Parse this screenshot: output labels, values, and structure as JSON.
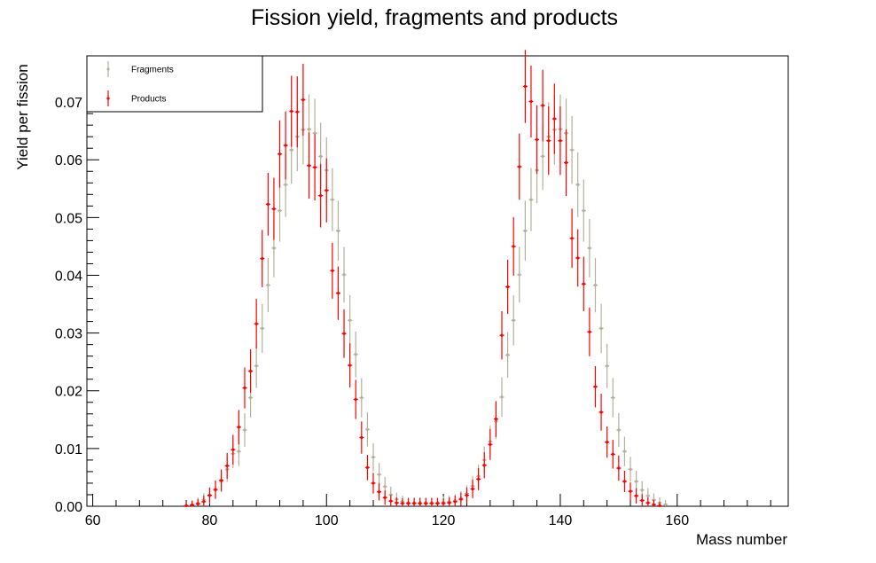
{
  "chart_data": {
    "type": "scatter",
    "title": "Fission yield, fragments and products",
    "xlabel": "Mass number",
    "ylabel": "Yield per fission",
    "xlim": [
      59,
      179
    ],
    "ylim": [
      0,
      0.078
    ],
    "x_ticks": [
      60,
      80,
      100,
      120,
      140,
      160
    ],
    "y_ticks": [
      0.0,
      0.01,
      0.02,
      0.03,
      0.04,
      0.05,
      0.06,
      0.07
    ],
    "x_tick_labels": [
      "60",
      "80",
      "100",
      "120",
      "140",
      "160"
    ],
    "y_tick_labels": [
      "0.00",
      "0.01",
      "0.02",
      "0.03",
      "0.04",
      "0.05",
      "0.06",
      "0.07"
    ],
    "grid": false,
    "legend_position": "top-left",
    "series": [
      {
        "name": "Fragments",
        "color": "#b5b09a",
        "points": [
          [
            76,
            0.0001
          ],
          [
            77,
            0.0003
          ],
          [
            78,
            0.0006
          ],
          [
            79,
            0.0011
          ],
          [
            80,
            0.0018
          ],
          [
            81,
            0.0028
          ],
          [
            82,
            0.0043
          ],
          [
            83,
            0.0064
          ],
          [
            84,
            0.0091
          ],
          [
            85,
            0.0095
          ],
          [
            86,
            0.0132
          ],
          [
            87,
            0.0188
          ],
          [
            88,
            0.0243
          ],
          [
            89,
            0.0308
          ],
          [
            90,
            0.0383
          ],
          [
            91,
            0.0447
          ],
          [
            92,
            0.0512
          ],
          [
            93,
            0.0557
          ],
          [
            94,
            0.0617
          ],
          [
            95,
            0.064
          ],
          [
            96,
            0.0652
          ],
          [
            97,
            0.0653
          ],
          [
            98,
            0.0646
          ],
          [
            99,
            0.0606
          ],
          [
            100,
            0.0582
          ],
          [
            101,
            0.0531
          ],
          [
            102,
            0.0477
          ],
          [
            103,
            0.0401
          ],
          [
            104,
            0.0322
          ],
          [
            105,
            0.0263
          ],
          [
            106,
            0.0188
          ],
          [
            107,
            0.0133
          ],
          [
            108,
            0.0085
          ],
          [
            109,
            0.0055
          ],
          [
            110,
            0.0034
          ],
          [
            111,
            0.002
          ],
          [
            112,
            0.0012
          ],
          [
            113,
            0.0008
          ],
          [
            114,
            0.0006
          ],
          [
            115,
            0.0006
          ],
          [
            116,
            0.0006
          ],
          [
            117,
            0.0006
          ],
          [
            118,
            0.0006
          ],
          [
            119,
            0.0006
          ],
          [
            120,
            0.0007
          ],
          [
            121,
            0.0008
          ],
          [
            122,
            0.001
          ],
          [
            123,
            0.0014
          ],
          [
            124,
            0.0022
          ],
          [
            125,
            0.0035
          ],
          [
            126,
            0.0052
          ],
          [
            127,
            0.008
          ],
          [
            128,
            0.0112
          ],
          [
            129,
            0.0147
          ],
          [
            130,
            0.0189
          ],
          [
            131,
            0.0262
          ],
          [
            132,
            0.0322
          ],
          [
            133,
            0.0401
          ],
          [
            134,
            0.0477
          ],
          [
            135,
            0.0531
          ],
          [
            136,
            0.0582
          ],
          [
            137,
            0.0606
          ],
          [
            138,
            0.064
          ],
          [
            139,
            0.0652
          ],
          [
            140,
            0.0653
          ],
          [
            141,
            0.0646
          ],
          [
            142,
            0.0617
          ],
          [
            143,
            0.0557
          ],
          [
            144,
            0.0512
          ],
          [
            145,
            0.0447
          ],
          [
            146,
            0.0383
          ],
          [
            147,
            0.0308
          ],
          [
            148,
            0.0243
          ],
          [
            149,
            0.0188
          ],
          [
            150,
            0.0132
          ],
          [
            151,
            0.0095
          ],
          [
            152,
            0.0064
          ],
          [
            153,
            0.0043
          ],
          [
            154,
            0.0028
          ],
          [
            155,
            0.0018
          ],
          [
            156,
            0.0011
          ],
          [
            157,
            0.0006
          ],
          [
            158,
            0.0003
          ]
        ]
      },
      {
        "name": "Products",
        "color": "#ff0000",
        "points": [
          [
            76,
            0.0001
          ],
          [
            77,
            0.0002
          ],
          [
            78,
            0.0004
          ],
          [
            79,
            0.0008
          ],
          [
            80,
            0.0019
          ],
          [
            81,
            0.0029
          ],
          [
            82,
            0.0045
          ],
          [
            83,
            0.007
          ],
          [
            84,
            0.0098
          ],
          [
            85,
            0.0137
          ],
          [
            86,
            0.0205
          ],
          [
            87,
            0.0234
          ],
          [
            88,
            0.0316
          ],
          [
            89,
            0.0429
          ],
          [
            90,
            0.0523
          ],
          [
            91,
            0.0515
          ],
          [
            92,
            0.061
          ],
          [
            93,
            0.0625
          ],
          [
            94,
            0.0684
          ],
          [
            95,
            0.0683
          ],
          [
            96,
            0.0704
          ],
          [
            97,
            0.059
          ],
          [
            98,
            0.0587
          ],
          [
            99,
            0.0538
          ],
          [
            100,
            0.0547
          ],
          [
            101,
            0.0408
          ],
          [
            102,
            0.0369
          ],
          [
            103,
            0.0299
          ],
          [
            104,
            0.0244
          ],
          [
            105,
            0.0185
          ],
          [
            106,
            0.0119
          ],
          [
            107,
            0.0067
          ],
          [
            108,
            0.004
          ],
          [
            109,
            0.0025
          ],
          [
            110,
            0.0015
          ],
          [
            111,
            0.0009
          ],
          [
            112,
            0.0006
          ],
          [
            113,
            0.0005
          ],
          [
            114,
            0.0005
          ],
          [
            115,
            0.0005
          ],
          [
            116,
            0.0005
          ],
          [
            117,
            0.0005
          ],
          [
            118,
            0.0005
          ],
          [
            119,
            0.0005
          ],
          [
            120,
            0.0005
          ],
          [
            121,
            0.0006
          ],
          [
            122,
            0.0008
          ],
          [
            123,
            0.0012
          ],
          [
            124,
            0.0019
          ],
          [
            125,
            0.003
          ],
          [
            126,
            0.0047
          ],
          [
            127,
            0.0071
          ],
          [
            128,
            0.0107
          ],
          [
            129,
            0.0151
          ],
          [
            130,
            0.0296
          ],
          [
            131,
            0.038
          ],
          [
            132,
            0.045
          ],
          [
            133,
            0.0588
          ],
          [
            134,
            0.0727
          ],
          [
            135,
            0.0701
          ],
          [
            136,
            0.0635
          ],
          [
            137,
            0.0694
          ],
          [
            138,
            0.0633
          ],
          [
            139,
            0.0671
          ],
          [
            140,
            0.0633
          ],
          [
            141,
            0.0595
          ],
          [
            142,
            0.0464
          ],
          [
            143,
            0.043
          ],
          [
            144,
            0.0385
          ],
          [
            145,
            0.0302
          ],
          [
            146,
            0.0207
          ],
          [
            147,
            0.0163
          ],
          [
            148,
            0.0111
          ],
          [
            149,
            0.009
          ],
          [
            150,
            0.0066
          ],
          [
            151,
            0.0043
          ],
          [
            152,
            0.0026
          ],
          [
            153,
            0.0018
          ],
          [
            154,
            0.001
          ],
          [
            155,
            0.0006
          ],
          [
            156,
            0.0003
          ],
          [
            157,
            0.0001
          ]
        ]
      }
    ]
  }
}
